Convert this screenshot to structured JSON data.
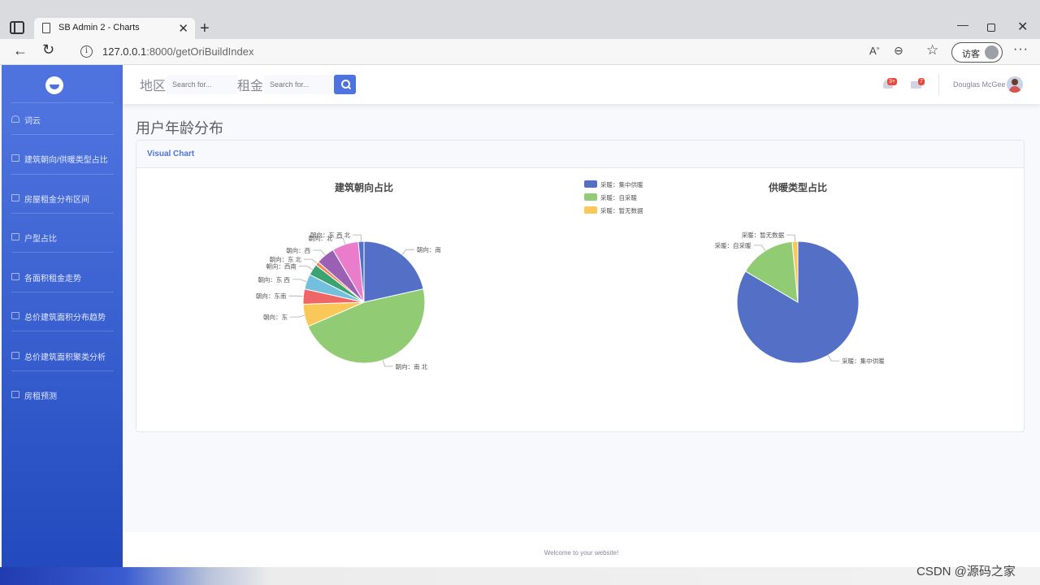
{
  "browser": {
    "tab_title": "SB Admin 2 - Charts",
    "url_host": "127.0.0.1",
    "url_path": ":8000/getOriBuildIndex",
    "guest_label": "访客"
  },
  "sidebar": {
    "items": [
      {
        "label": "词云",
        "icon": "dashboard-icon"
      },
      {
        "label": "建筑朝向/供暖类型占比",
        "icon": "chart-area-icon"
      },
      {
        "label": "房屋租金分布区间",
        "icon": "table-icon"
      },
      {
        "label": "户型占比",
        "icon": "table-icon"
      },
      {
        "label": "各面积租金走势",
        "icon": "table-icon"
      },
      {
        "label": "总价建筑面积分布趋势",
        "icon": "table-icon"
      },
      {
        "label": "总价建筑面积聚类分析",
        "icon": "table-icon"
      },
      {
        "label": "房租预测",
        "icon": "table-icon"
      }
    ]
  },
  "topbar": {
    "region_label": "地区",
    "rent_label": "租金",
    "search_placeholder": "Search for...",
    "alerts_badge": "3+",
    "messages_badge": "7",
    "user_name": "Douglas McGee"
  },
  "main": {
    "heading": "用户年龄分布",
    "card_title": "Visual Chart"
  },
  "footer": {
    "text": "Welcome to your website!"
  },
  "watermark": "CSDN @源码之家",
  "colors": {
    "primary": "#4e73df",
    "palette": [
      "#5470c6",
      "#91cc75",
      "#fac858",
      "#ee6666",
      "#73c0de",
      "#3ba272",
      "#fc8452",
      "#9a60b4",
      "#ea7ccc"
    ]
  },
  "chart_data": [
    {
      "type": "pie",
      "title": "建筑朝向占比",
      "slices": [
        {
          "name": "朝向：南",
          "value": 21.5
        },
        {
          "name": "朝向：南 北",
          "value": 47.0
        },
        {
          "name": "朝向：东",
          "value": 6.0
        },
        {
          "name": "朝向：东南",
          "value": 4.0
        },
        {
          "name": "朝向：东 西",
          "value": 4.0
        },
        {
          "name": "朝向：西南",
          "value": 3.0
        },
        {
          "name": "朝向：东 北",
          "value": 1.0
        },
        {
          "name": "朝向：西",
          "value": 5.0
        },
        {
          "name": "朝向：北",
          "value": 7.0
        },
        {
          "name": "朝向：东 西 北",
          "value": 1.5
        }
      ]
    },
    {
      "type": "pie",
      "title": "供暖类型占比",
      "legend": [
        "采暖：集中供暖",
        "采暖：自采暖",
        "采暖：暂无数据"
      ],
      "legend_position": "top-center",
      "slices": [
        {
          "name": "采暖：集中供暖",
          "value": 83.5
        },
        {
          "name": "采暖：自采暖",
          "value": 15.0
        },
        {
          "name": "采暖：暂无数据",
          "value": 1.5
        }
      ]
    }
  ]
}
